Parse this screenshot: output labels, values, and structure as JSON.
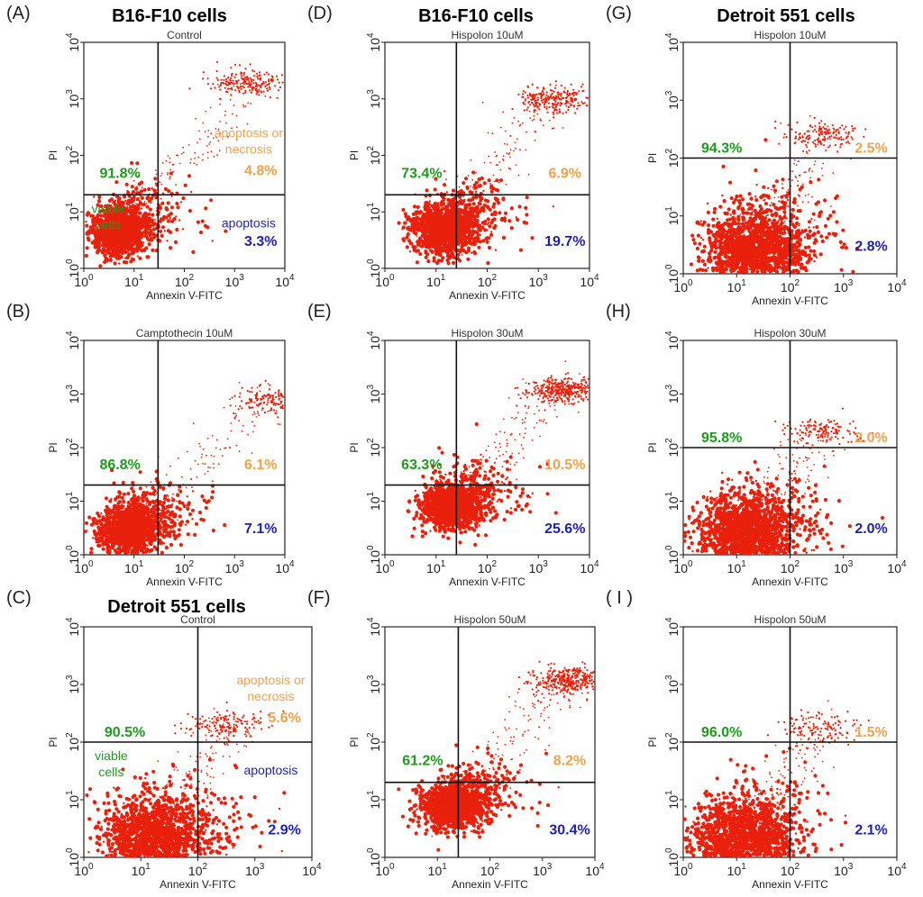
{
  "colors": {
    "green": "#1e9a1e",
    "orange": "#f0a24a",
    "blue": "#1f1fb8",
    "dots": "#e8200c",
    "gate": "#111111"
  },
  "group_titles": [
    {
      "text": "B16-F10 cells"
    },
    {
      "text": "B16-F10 cells"
    },
    {
      "text": "Detroit 551 cells"
    },
    {
      "text": "Detroit 551 cells"
    }
  ],
  "chart_data": [
    {
      "type": "scatter",
      "letter": "(A)",
      "title": "Control",
      "xlabel": "Annexin V-FITC",
      "ylabel": "PI",
      "xscale": "log",
      "yscale": "log",
      "xlim": [
        1,
        10000
      ],
      "ylim": [
        1,
        10000
      ],
      "gate": {
        "x": 30,
        "y": 20
      },
      "quadrants": {
        "ul": "91.8%",
        "ur": "4.8%",
        "lr": "3.3%"
      },
      "annotations": {
        "viable_cells": "viable\ncells",
        "apoptosis_or_necrosis": "apoptosis or\nnecrosis",
        "apoptosis": "apoptosis"
      },
      "population": {
        "center": [
          5,
          4.5
        ],
        "spread": [
          0.26,
          0.22
        ],
        "count": 1500,
        "upper_center": [
          2000,
          2000
        ],
        "upper_count": 200
      }
    },
    {
      "type": "scatter",
      "letter": "(B)",
      "title": "Camptothecin 10uM",
      "xlabel": "Annexin V-FITC",
      "ylabel": "PI",
      "xscale": "log",
      "yscale": "log",
      "xlim": [
        1,
        10000
      ],
      "ylim": [
        1,
        10000
      ],
      "gate": {
        "x": 30,
        "y": 20
      },
      "quadrants": {
        "ul": "86.8%",
        "ur": "6.1%",
        "lr": "7.1%"
      },
      "population": {
        "center": [
          8,
          3
        ],
        "spread": [
          0.3,
          0.22
        ],
        "count": 1500,
        "upper_center": [
          5000,
          800
        ],
        "upper_count": 150
      }
    },
    {
      "type": "scatter",
      "letter": "(C)",
      "title": "Control",
      "xlabel": "Annexin V-FITC",
      "ylabel": "PI",
      "xscale": "log",
      "yscale": "log",
      "xlim": [
        1,
        10000
      ],
      "ylim": [
        1,
        10000
      ],
      "gate": {
        "x": 100,
        "y": 100
      },
      "quadrants": {
        "ul": "90.5%",
        "ur": "5.6%",
        "lr": "2.9%"
      },
      "annotations": {
        "viable_cells": "viable\ncells",
        "apoptosis_or_necrosis": "apoptosis or\nnecrosis",
        "apoptosis": "apoptosis"
      },
      "population": {
        "center": [
          15,
          2
        ],
        "spread": [
          0.45,
          0.35
        ],
        "count": 1700,
        "upper_center": [
          300,
          200
        ],
        "upper_count": 150
      }
    },
    {
      "type": "scatter",
      "letter": "(D)",
      "title": "Hispolon 10uM",
      "xlabel": "Annexin V-FITC",
      "ylabel": "PI",
      "xscale": "log",
      "yscale": "log",
      "xlim": [
        1,
        10000
      ],
      "ylim": [
        1,
        10000
      ],
      "gate": {
        "x": 25,
        "y": 20
      },
      "quadrants": {
        "ul": "73.4%",
        "ur": "6.9%",
        "lr": "19.7%"
      },
      "population": {
        "center": [
          15,
          5
        ],
        "spread": [
          0.3,
          0.22
        ],
        "count": 1500,
        "upper_center": [
          2000,
          1000
        ],
        "upper_count": 250
      }
    },
    {
      "type": "scatter",
      "letter": "(E)",
      "title": "Hispolon 30uM",
      "xlabel": "Annexin V-FITC",
      "ylabel": "PI",
      "xscale": "log",
      "yscale": "log",
      "xlim": [
        1,
        10000
      ],
      "ylim": [
        1,
        10000
      ],
      "gate": {
        "x": 25,
        "y": 20
      },
      "quadrants": {
        "ul": "63.3%",
        "ur": "10.5%",
        "lr": "25.6%"
      },
      "population": {
        "center": [
          20,
          8
        ],
        "spread": [
          0.3,
          0.2
        ],
        "count": 1500,
        "upper_center": [
          3000,
          1200
        ],
        "upper_count": 350
      }
    },
    {
      "type": "scatter",
      "letter": "(F)",
      "title": "Hispolon 50uM",
      "xlabel": "Annexin V-FITC",
      "ylabel": "PI",
      "xscale": "log",
      "yscale": "log",
      "xlim": [
        1,
        10000
      ],
      "ylim": [
        1,
        10000
      ],
      "gate": {
        "x": 25,
        "y": 20
      },
      "quadrants": {
        "ul": "61.2%",
        "ur": "8.2%",
        "lr": "30.4%"
      },
      "population": {
        "center": [
          20,
          8
        ],
        "spread": [
          0.3,
          0.2
        ],
        "count": 1400,
        "upper_center": [
          3000,
          1200
        ],
        "upper_count": 350
      }
    },
    {
      "type": "scatter",
      "letter": "(G)",
      "title": "Hispolon 10uM",
      "xlabel": "Annexin V-FITC",
      "ylabel": "PI",
      "xscale": "log",
      "yscale": "log",
      "xlim": [
        1,
        10000
      ],
      "ylim": [
        1,
        10000
      ],
      "gate": {
        "x": 100,
        "y": 100
      },
      "quadrants": {
        "ul": "94.3%",
        "ur": "2.5%",
        "lr": "2.8%"
      },
      "population": {
        "center": [
          20,
          2.5
        ],
        "spread": [
          0.45,
          0.35
        ],
        "count": 1700,
        "upper_center": [
          400,
          250
        ],
        "upper_count": 150
      }
    },
    {
      "type": "scatter",
      "letter": "(H)",
      "title": "Hispolon 30uM",
      "xlabel": "Annexin V-FITC",
      "ylabel": "PI",
      "xscale": "log",
      "yscale": "log",
      "xlim": [
        1,
        10000
      ],
      "ylim": [
        1,
        10000
      ],
      "gate": {
        "x": 100,
        "y": 100
      },
      "quadrants": {
        "ul": "95.8%",
        "ur": "2.0%",
        "lr": "2.0%"
      },
      "population": {
        "center": [
          15,
          2.5
        ],
        "spread": [
          0.45,
          0.35
        ],
        "count": 1700,
        "upper_center": [
          400,
          200
        ],
        "upper_count": 130
      }
    },
    {
      "type": "scatter",
      "letter": "( I )",
      "title": "Hispolon 50uM",
      "xlabel": "Annexin V-FITC",
      "ylabel": "PI",
      "xscale": "log",
      "yscale": "log",
      "xlim": [
        1,
        10000
      ],
      "ylim": [
        1,
        10000
      ],
      "gate": {
        "x": 100,
        "y": 100
      },
      "quadrants": {
        "ul": "96.0%",
        "ur": "1.5%",
        "lr": "2.1%"
      },
      "population": {
        "center": [
          12,
          2
        ],
        "spread": [
          0.45,
          0.35
        ],
        "count": 1700,
        "upper_center": [
          400,
          180
        ],
        "upper_count": 120
      }
    }
  ]
}
